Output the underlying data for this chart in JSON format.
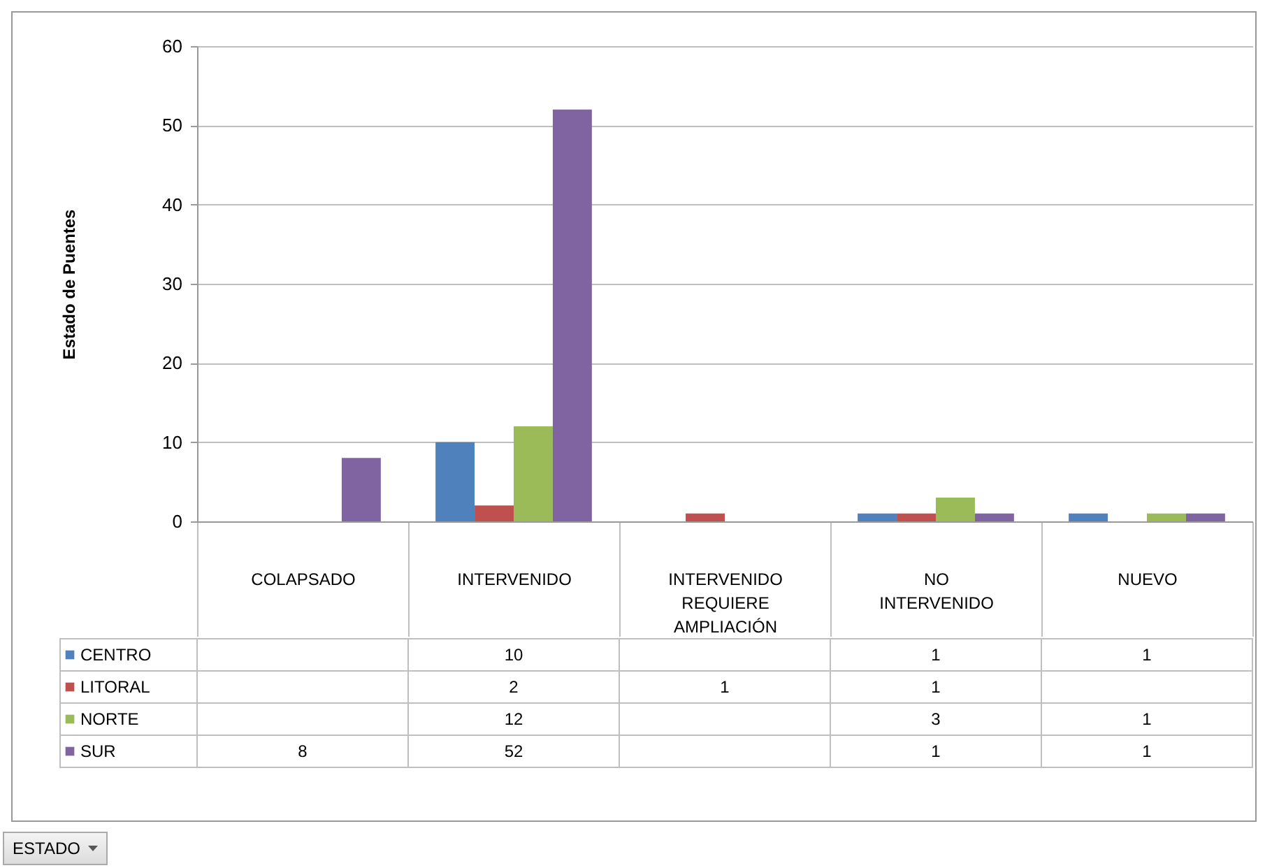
{
  "chart_data": {
    "type": "bar",
    "ylabel": "Estado de Puentes",
    "annotations": [
      "ESTADO"
    ],
    "categories": [
      "COLAPSADO",
      "INTERVENIDO",
      "INTERVENIDO REQUIERE AMPLIACIÓN",
      "NO INTERVENIDO",
      "NUEVO"
    ],
    "series": [
      {
        "name": "CENTRO",
        "color": "#4f81bd",
        "values": [
          null,
          10,
          null,
          1,
          1
        ]
      },
      {
        "name": "LITORAL",
        "color": "#c0504d",
        "values": [
          null,
          2,
          1,
          1,
          null
        ]
      },
      {
        "name": "NORTE",
        "color": "#9bbb59",
        "values": [
          null,
          12,
          null,
          3,
          1
        ]
      },
      {
        "name": "SUR",
        "color": "#8064a2",
        "values": [
          8,
          52,
          null,
          1,
          1
        ]
      }
    ],
    "ylim": [
      0,
      60
    ],
    "yticks": [
      0,
      10,
      20,
      30,
      40,
      50,
      60
    ],
    "grid": "y",
    "legend": "bottom left",
    "data_labels": true
  }
}
